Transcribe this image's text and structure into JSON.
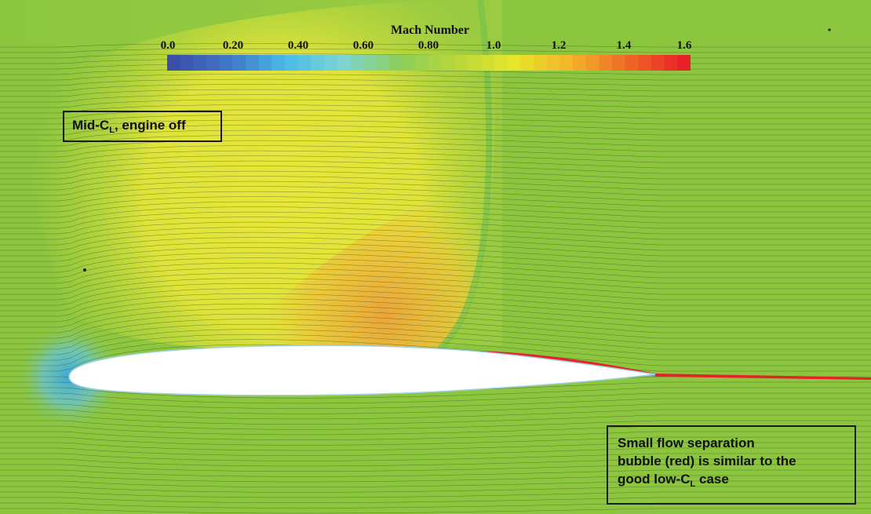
{
  "colorbar": {
    "title": "Mach Number",
    "ticks": [
      "0.0",
      "0.20",
      "0.40",
      "0.60",
      "0.80",
      "1.0",
      "1.2",
      "1.4",
      "1.6"
    ],
    "range": [
      0.0,
      1.6
    ],
    "colors": [
      "#3b4fa6",
      "#3f78c8",
      "#4bbce8",
      "#7fd4d2",
      "#8ccf5a",
      "#b9d73a",
      "#e8e62a",
      "#f2b42a",
      "#ef6a25",
      "#e8202a"
    ]
  },
  "case_label": {
    "prefix": "Mid-C",
    "subscript": "L",
    "suffix": ", engine off"
  },
  "note": {
    "line1": "Small flow separation",
    "line2": "bubble (red) is similar to the",
    "line3_prefix": "good low-C",
    "line3_subscript": "L",
    "line3_suffix": " case"
  },
  "field_colors": {
    "freestream": "#8cc63f",
    "supersonic_pocket": "#e3e43a",
    "shock_core": "#eab43a",
    "stagnation": "#4fb8d8",
    "separation": "#e8202a",
    "airfoil": "#ffffff"
  }
}
